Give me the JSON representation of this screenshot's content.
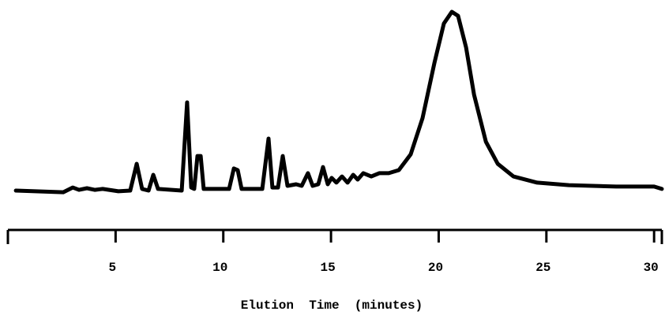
{
  "chart_data": {
    "type": "line",
    "xlabel": "Elution  Time  (minutes)",
    "x": [
      0.37,
      2.57,
      3.01,
      3.3,
      3.67,
      4.03,
      4.4,
      5.13,
      5.68,
      5.98,
      6.23,
      6.53,
      6.75,
      6.97,
      8.07,
      8.32,
      8.51,
      8.65,
      8.8,
      8.95,
      9.09,
      10.27,
      10.49,
      10.67,
      10.85,
      11.81,
      12.1,
      12.28,
      12.54,
      12.76,
      12.98,
      13.38,
      13.64,
      13.93,
      14.15,
      14.41,
      14.63,
      14.85,
      15.03,
      15.25,
      15.51,
      15.77,
      16.03,
      16.24,
      16.5,
      16.87,
      17.24,
      17.68,
      18.15,
      18.7,
      19.25,
      19.8,
      20.24,
      20.61,
      20.9,
      21.27,
      21.64,
      22.19,
      22.74,
      23.47,
      24.57,
      26.04,
      28.24,
      30.0,
      30.36
    ],
    "values": [
      1.3,
      0.4,
      3.0,
      1.7,
      2.6,
      1.7,
      2.2,
      0.9,
      1.3,
      16.1,
      2.2,
      1.3,
      10.0,
      2.2,
      1.3,
      50.0,
      3.0,
      2.2,
      20.4,
      20.4,
      2.2,
      2.2,
      13.5,
      12.6,
      2.2,
      2.2,
      30.0,
      3.0,
      3.0,
      20.4,
      3.9,
      4.8,
      3.9,
      10.9,
      3.9,
      4.8,
      14.3,
      4.8,
      8.3,
      5.7,
      9.1,
      5.7,
      10.0,
      7.4,
      10.9,
      9.1,
      10.9,
      10.9,
      12.6,
      21.3,
      41.3,
      71.7,
      93.5,
      100,
      97.8,
      80.4,
      54.3,
      28.3,
      16.1,
      9.1,
      5.7,
      4.3,
      3.5,
      3.5,
      2.2
    ],
    "color": "#000000",
    "xlim": [
      0,
      30.36
    ],
    "xticks": [
      5,
      10,
      15,
      20,
      25,
      30
    ],
    "ylim": [
      0,
      100
    ]
  }
}
